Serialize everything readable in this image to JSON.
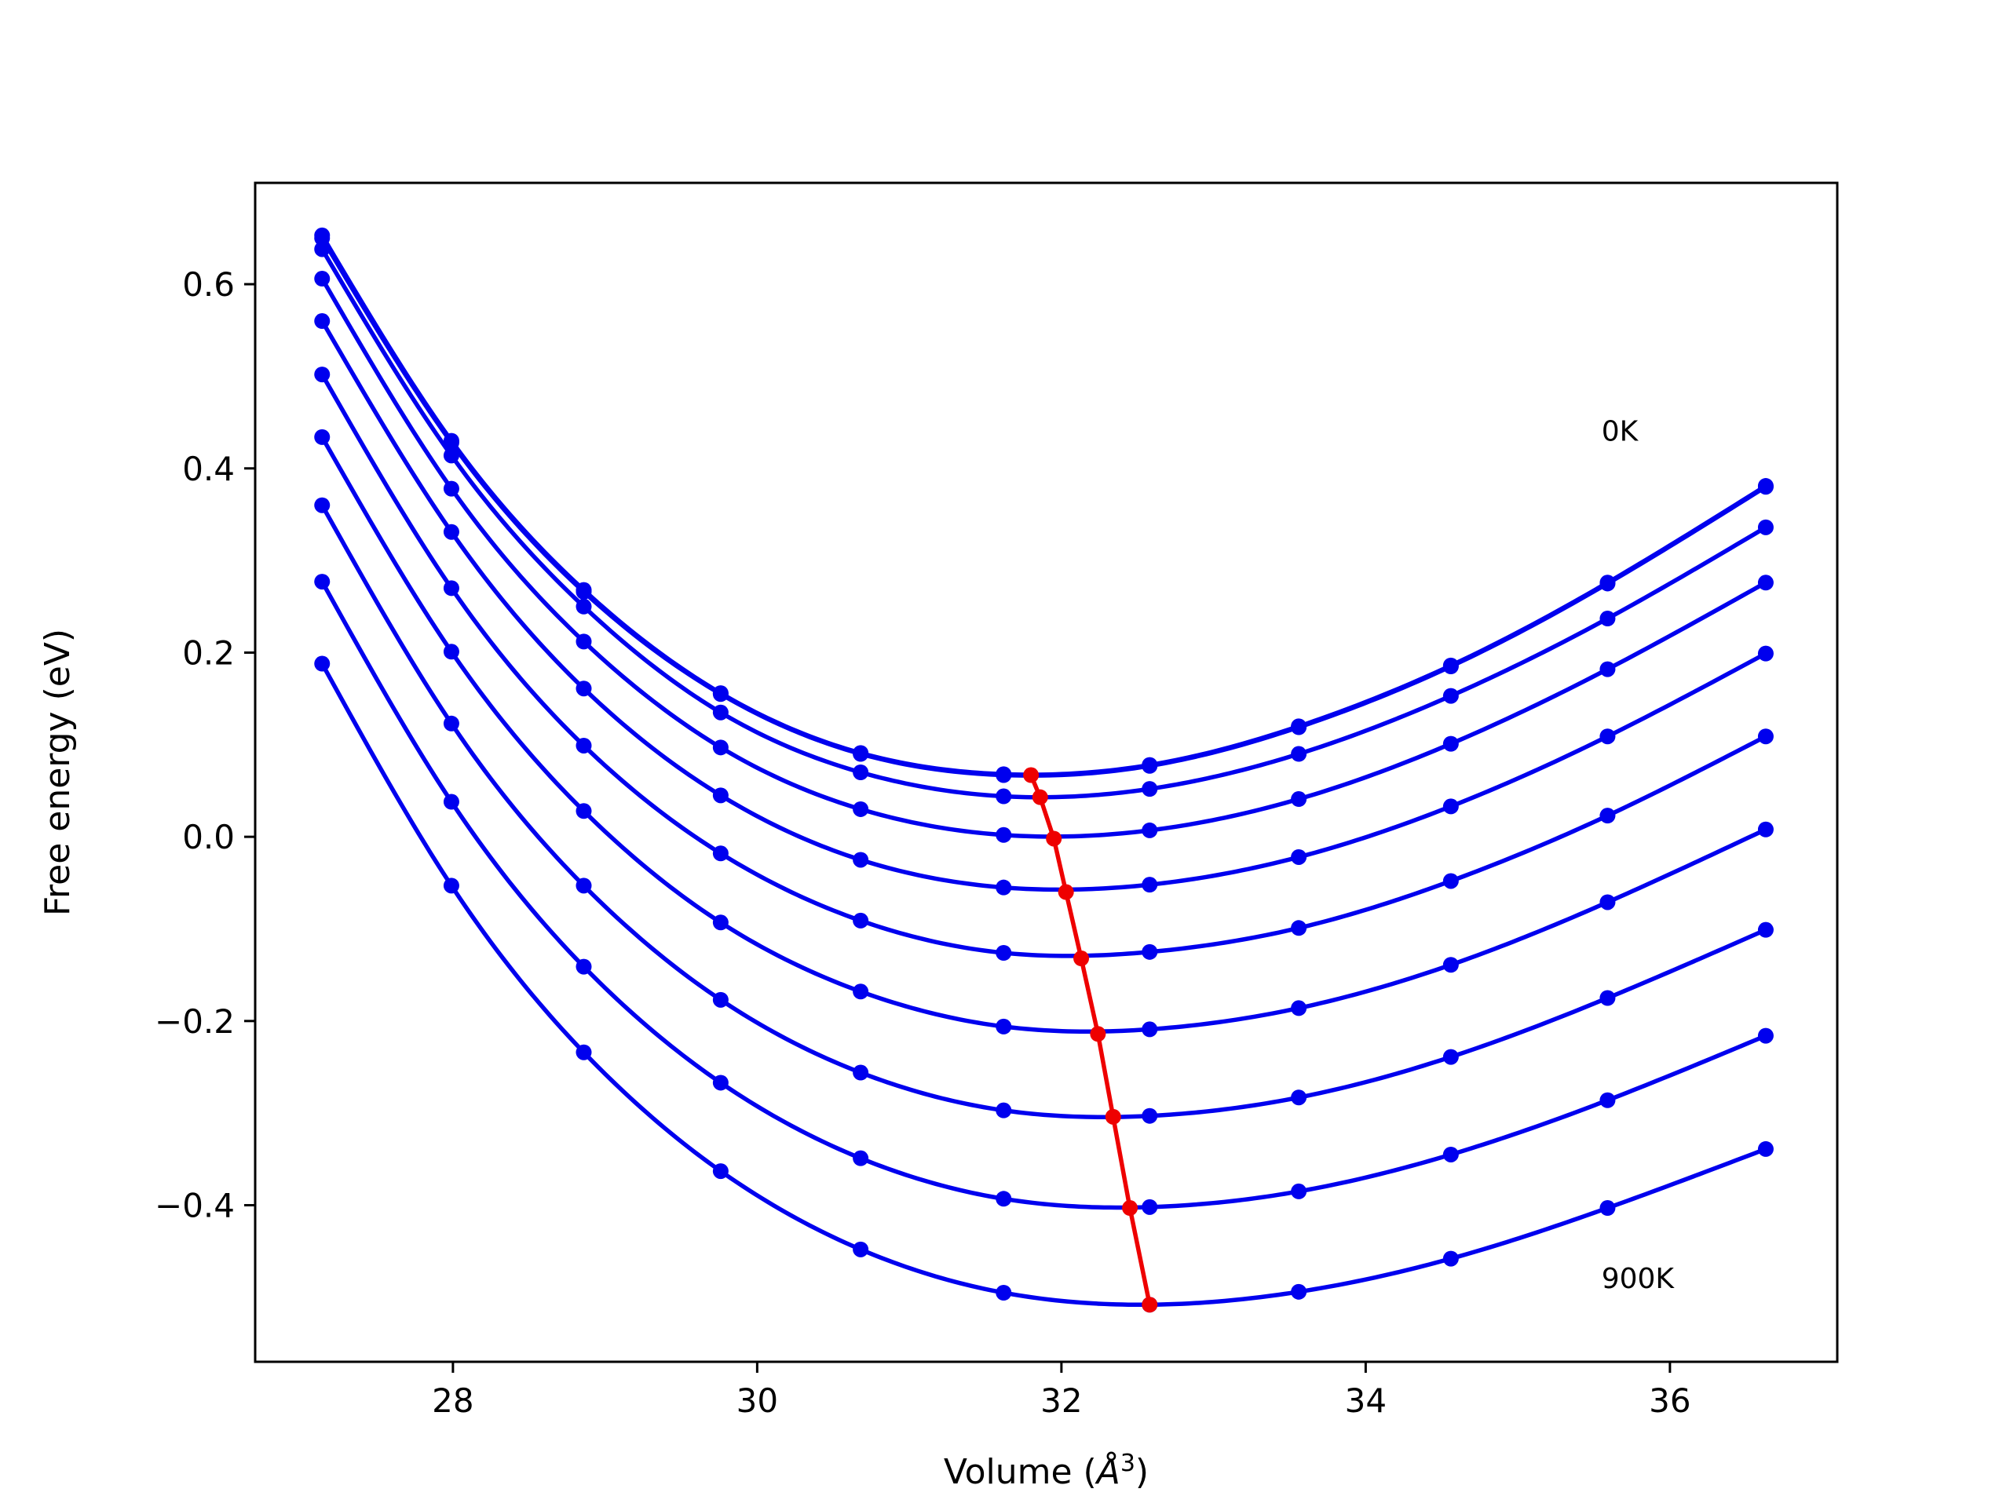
{
  "chart_data": {
    "type": "line",
    "title": "",
    "xlabel": "Volume",
    "xlabel_unit_base": "Å",
    "xlabel_unit_exp": "3",
    "ylabel": "Free energy (eV)",
    "xlim": [
      26.7,
      37.1
    ],
    "ylim": [
      -0.57,
      0.71
    ],
    "xticks": [
      28,
      30,
      32,
      34,
      36
    ],
    "xtick_labels": [
      "28",
      "30",
      "32",
      "34",
      "36"
    ],
    "yticks": [
      -0.4,
      -0.2,
      0.0,
      0.2,
      0.4,
      0.6
    ],
    "ytick_labels": [
      "−0.4",
      "−0.2",
      "0.0",
      "0.2",
      "0.4",
      "0.6"
    ],
    "grid": false,
    "legend": "none",
    "annotations": [
      {
        "text": "0K",
        "x": 35.55,
        "y": 0.43
      },
      {
        "text": "900K",
        "x": 35.55,
        "y": -0.49
      }
    ],
    "colors": {
      "curves": "#0000ee",
      "minimum_line": "#ee0000",
      "axes": "#000000"
    },
    "x": [
      27.14,
      27.99,
      28.86,
      29.76,
      30.68,
      31.62,
      32.58,
      33.56,
      34.56,
      35.59,
      36.63
    ],
    "series": [
      {
        "values": [
          0.653,
          0.43,
          0.268,
          0.156,
          0.091,
          0.068,
          0.078,
          0.12,
          0.186,
          0.276,
          0.381
        ]
      },
      {
        "values": [
          0.65,
          0.428,
          0.266,
          0.155,
          0.09,
          0.067,
          0.077,
          0.119,
          0.185,
          0.275,
          0.38
        ]
      },
      {
        "values": [
          0.638,
          0.414,
          0.25,
          0.135,
          0.07,
          0.044,
          0.052,
          0.09,
          0.153,
          0.237,
          0.336
        ]
      },
      {
        "values": [
          0.606,
          0.378,
          0.212,
          0.097,
          0.03,
          0.002,
          0.007,
          0.041,
          0.101,
          0.182,
          0.276
        ]
      },
      {
        "values": [
          0.56,
          0.331,
          0.161,
          0.045,
          -0.025,
          -0.055,
          -0.052,
          -0.022,
          0.033,
          0.109,
          0.199
        ]
      },
      {
        "values": [
          0.502,
          0.27,
          0.099,
          -0.018,
          -0.091,
          -0.126,
          -0.125,
          -0.099,
          -0.048,
          0.023,
          0.109
        ]
      },
      {
        "values": [
          0.434,
          0.201,
          0.028,
          -0.093,
          -0.168,
          -0.206,
          -0.209,
          -0.186,
          -0.139,
          -0.071,
          0.008
        ]
      },
      {
        "values": [
          0.36,
          0.123,
          -0.053,
          -0.177,
          -0.256,
          -0.297,
          -0.303,
          -0.283,
          -0.239,
          -0.175,
          -0.101
        ]
      },
      {
        "values": [
          0.277,
          0.038,
          -0.141,
          -0.267,
          -0.349,
          -0.393,
          -0.402,
          -0.385,
          -0.345,
          -0.286,
          -0.216
        ]
      },
      {
        "values": [
          0.188,
          -0.053,
          -0.234,
          -0.363,
          -0.448,
          -0.495,
          -0.508,
          -0.494,
          -0.458,
          -0.403,
          -0.339
        ]
      }
    ],
    "minimum_line": {
      "x": [
        31.8,
        31.86,
        31.95,
        32.03,
        32.13,
        32.24,
        32.34,
        32.45,
        32.58
      ],
      "y": [
        0.067,
        0.043,
        -0.002,
        -0.06,
        -0.132,
        -0.214,
        -0.304,
        -0.403,
        -0.508
      ]
    }
  }
}
